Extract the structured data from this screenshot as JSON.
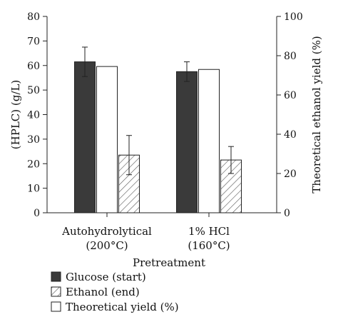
{
  "chart_data": {
    "type": "bar",
    "title": "",
    "xlabel": "Pretreatment",
    "ylabel": "(HPLC) (g/L)",
    "y2label": "Theoretical ethanol yield (%)",
    "ylim": [
      0,
      80
    ],
    "y2lim": [
      0,
      100
    ],
    "yticks": [
      "0",
      "10",
      "20",
      "30",
      "40",
      "50",
      "60",
      "70",
      "80"
    ],
    "y2ticks": [
      "0",
      "20",
      "40",
      "60",
      "80",
      "100"
    ],
    "grid": false,
    "legend_position": "bottom-left",
    "categories": [
      [
        "Autohydrolytical",
        "(200°C)"
      ],
      [
        "1% HCl",
        "(160°C)"
      ]
    ],
    "series": [
      {
        "name": "Glucose (start)",
        "axis": "left",
        "style": "dark",
        "values": [
          61.5,
          57.5
        ],
        "errors": [
          6,
          4
        ]
      },
      {
        "name": "Theoretical yield (%)",
        "axis": "right",
        "style": "white",
        "values": [
          74.5,
          73.0
        ],
        "errors": [
          null,
          null
        ]
      },
      {
        "name": "Ethanol (end)",
        "axis": "left",
        "style": "hatch",
        "values": [
          23.5,
          21.5
        ],
        "errors": [
          8,
          5.5
        ]
      }
    ],
    "legend_order": [
      0,
      2,
      1
    ],
    "colors": {
      "dark": "#3a3a3a",
      "white": "#ffffff",
      "hatch_line": "#555555",
      "stroke": "#222222"
    }
  }
}
